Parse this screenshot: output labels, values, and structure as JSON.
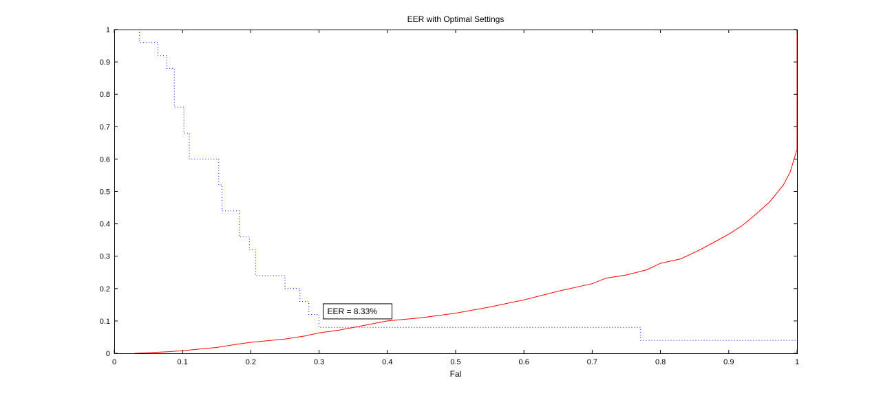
{
  "chart_data": {
    "type": "line",
    "title": "EER with Optimal Settings",
    "xlabel": "Fal",
    "ylabel": "",
    "xlim": [
      0,
      1
    ],
    "ylim": [
      0,
      1
    ],
    "xticks": [
      "0",
      "0.1",
      "0.2",
      "0.3",
      "0.4",
      "0.5",
      "0.6",
      "0.7",
      "0.8",
      "0.9",
      "1"
    ],
    "yticks": [
      "0",
      "0.1",
      "0.2",
      "0.3",
      "0.4",
      "0.5",
      "0.6",
      "0.7",
      "0.8",
      "0.9",
      "1"
    ],
    "grid": false,
    "series": [
      {
        "color": "#0000ff",
        "linestyle": "dotted",
        "step": true,
        "points": [
          [
            0.037,
            1.0
          ],
          [
            0.037,
            0.96
          ],
          [
            0.064,
            0.96
          ],
          [
            0.064,
            0.92
          ],
          [
            0.077,
            0.92
          ],
          [
            0.077,
            0.88
          ],
          [
            0.088,
            0.88
          ],
          [
            0.088,
            0.76
          ],
          [
            0.102,
            0.76
          ],
          [
            0.102,
            0.68
          ],
          [
            0.11,
            0.68
          ],
          [
            0.11,
            0.6
          ],
          [
            0.153,
            0.6
          ],
          [
            0.153,
            0.52
          ],
          [
            0.158,
            0.52
          ],
          [
            0.158,
            0.44
          ],
          [
            0.183,
            0.44
          ],
          [
            0.183,
            0.36
          ],
          [
            0.198,
            0.36
          ],
          [
            0.198,
            0.32
          ],
          [
            0.207,
            0.32
          ],
          [
            0.207,
            0.24
          ],
          [
            0.25,
            0.24
          ],
          [
            0.25,
            0.2
          ],
          [
            0.272,
            0.2
          ],
          [
            0.272,
            0.16
          ],
          [
            0.285,
            0.16
          ],
          [
            0.285,
            0.12
          ],
          [
            0.3,
            0.12
          ],
          [
            0.3,
            0.08
          ],
          [
            0.771,
            0.08
          ],
          [
            0.771,
            0.04
          ],
          [
            1.0,
            0.04
          ]
        ]
      },
      {
        "color": "#ff0000",
        "linestyle": "solid",
        "step": false,
        "points": [
          [
            0.03,
            0.0
          ],
          [
            0.05,
            0.002
          ],
          [
            0.08,
            0.005
          ],
          [
            0.1,
            0.008
          ],
          [
            0.12,
            0.012
          ],
          [
            0.15,
            0.018
          ],
          [
            0.18,
            0.028
          ],
          [
            0.2,
            0.034
          ],
          [
            0.25,
            0.044
          ],
          [
            0.28,
            0.054
          ],
          [
            0.3,
            0.063
          ],
          [
            0.33,
            0.072
          ],
          [
            0.37,
            0.088
          ],
          [
            0.4,
            0.1
          ],
          [
            0.45,
            0.11
          ],
          [
            0.5,
            0.124
          ],
          [
            0.55,
            0.143
          ],
          [
            0.6,
            0.165
          ],
          [
            0.65,
            0.192
          ],
          [
            0.7,
            0.215
          ],
          [
            0.72,
            0.232
          ],
          [
            0.75,
            0.242
          ],
          [
            0.78,
            0.258
          ],
          [
            0.8,
            0.278
          ],
          [
            0.83,
            0.292
          ],
          [
            0.86,
            0.322
          ],
          [
            0.88,
            0.345
          ],
          [
            0.9,
            0.368
          ],
          [
            0.92,
            0.395
          ],
          [
            0.94,
            0.43
          ],
          [
            0.96,
            0.468
          ],
          [
            0.98,
            0.52
          ],
          [
            0.99,
            0.56
          ],
          [
            1.0,
            0.63
          ],
          [
            1.0,
            1.0
          ]
        ]
      }
    ],
    "annotation": {
      "text": "EER = 8.33%",
      "x": 0.0833,
      "y": 0.0833
    }
  }
}
